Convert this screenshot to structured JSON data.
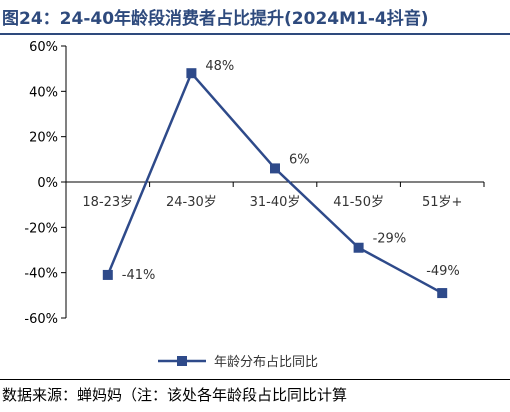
{
  "title": "图24：24-40年龄段消费者占比提升(2024M1-4抖音)",
  "source": "数据来源：蝉妈妈（注：该处各年龄段占比同比计算",
  "colors": {
    "series": "#2e4a8a",
    "title": "#2e4a7d",
    "axis": "#000000"
  },
  "chart_data": {
    "type": "line",
    "categories": [
      "18-23岁",
      "24-30岁",
      "31-40岁",
      "41-50岁",
      "51岁+"
    ],
    "series": [
      {
        "name": "年龄分布占比同比",
        "values": [
          -41,
          48,
          6,
          -29,
          -49
        ]
      }
    ],
    "data_labels": [
      "-41%",
      "48%",
      "6%",
      "-29%",
      "-49%"
    ],
    "yticks": [
      "60%",
      "40%",
      "20%",
      "0%",
      "-20%",
      "-40%",
      "-60%"
    ],
    "ylim": [
      -60,
      60
    ],
    "legend": "bottom-center",
    "grid": false
  }
}
